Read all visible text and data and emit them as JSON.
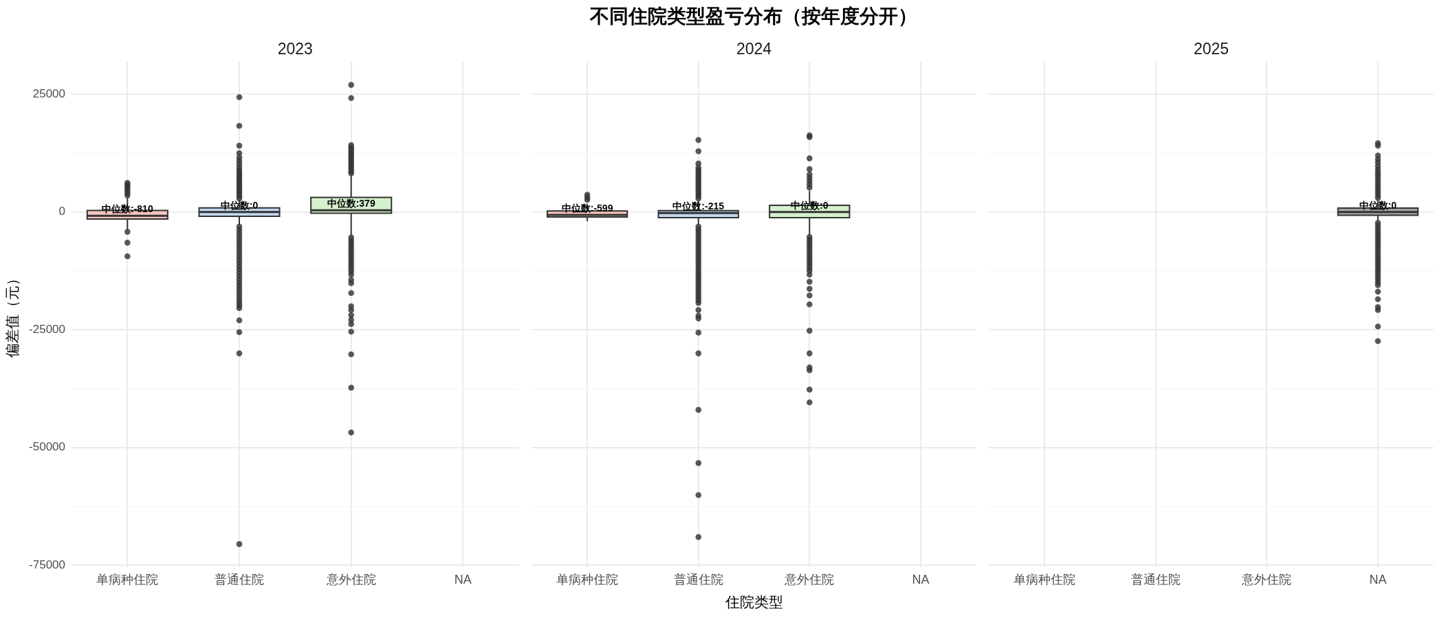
{
  "chart_data": [
    {
      "type": "box",
      "subtitle": "2023",
      "ylabel": "偏差值（元）",
      "categories": [
        "单病种住院",
        "普通住院",
        "意外住院",
        "NA"
      ],
      "boxes": [
        {
          "low": -3700,
          "q1": -1500,
          "median": -810,
          "q3": 350,
          "high": 3000,
          "outliers": [
            3500,
            4000,
            4500,
            5000,
            5400,
            5800,
            6200,
            -4200,
            -6500,
            -9400
          ]
        },
        {
          "low": -2700,
          "q1": -900,
          "median": 0,
          "q3": 900,
          "high": 2600,
          "outliers": [
            2900,
            3400,
            3900,
            4400,
            4900,
            5400,
            5900,
            6400,
            6900,
            7400,
            7900,
            8400,
            8900,
            9500,
            10200,
            10900,
            11600,
            12500,
            14100,
            18300,
            24400,
            -3100,
            -3800,
            -4500,
            -5200,
            -5900,
            -6600,
            -7300,
            -8000,
            -8700,
            -9400,
            -10100,
            -10800,
            -11500,
            -12200,
            -12900,
            -13600,
            -14300,
            -15000,
            -15700,
            -16400,
            -17100,
            -17800,
            -18500,
            -19200,
            -19800,
            -20400,
            -23000,
            -25500,
            -30000,
            -70500
          ]
        },
        {
          "low": -5000,
          "q1": -230,
          "median": 379,
          "q3": 3100,
          "high": 7800,
          "outliers": [
            8200,
            8700,
            9200,
            9700,
            10200,
            10700,
            11200,
            11700,
            12200,
            12700,
            13200,
            13700,
            14200,
            24200,
            27000,
            -5400,
            -6000,
            -6600,
            -7200,
            -7800,
            -8400,
            -9000,
            -9600,
            -10200,
            -10800,
            -11400,
            -12000,
            -12600,
            -13300,
            -14400,
            -15100,
            -17200,
            -20000,
            -20800,
            -21900,
            -22900,
            -23800,
            -25400,
            -30200,
            -37300,
            -46800
          ]
        },
        null
      ],
      "colors": [
        "#f9c4be",
        "#c2d6ec",
        "#d4f0cc",
        null
      ],
      "value_labels": [
        "中位数:-810",
        "中位数:0",
        "中位数:379",
        null
      ],
      "ylim": [
        -75400,
        31900
      ],
      "yticks": [
        -75000,
        {
          "value": -62500,
          "label": null
        },
        -50000,
        {
          "value": -37500,
          "label": null
        },
        -25000,
        {
          "value": -12500,
          "label": null
        },
        0,
        {
          "value": 12500,
          "label": null
        },
        25000
      ],
      "grid": true
    },
    {
      "type": "box",
      "title": "不同住院类型盈亏分布（按年度分开）",
      "subtitle": "2024",
      "xlabel": "住院类型",
      "categories": [
        "单病种住院",
        "普通住院",
        "意外住院",
        "NA"
      ],
      "boxes": [
        {
          "low": -1960,
          "q1": -1050,
          "median": -599,
          "q3": 230,
          "high": 1500,
          "outliers": [
            2600,
            3100,
            3700
          ]
        },
        {
          "low": -2700,
          "q1": -1200,
          "median": -215,
          "q3": 300,
          "high": 2400,
          "outliers": [
            2900,
            3400,
            3900,
            4400,
            4900,
            5400,
            5900,
            6400,
            6900,
            7400,
            7900,
            8400,
            8900,
            9400,
            10300,
            12900,
            15300,
            -3100,
            -3700,
            -4300,
            -4900,
            -5500,
            -6100,
            -6700,
            -7300,
            -7900,
            -8500,
            -9100,
            -9700,
            -10300,
            -10900,
            -11500,
            -12100,
            -12700,
            -13300,
            -13900,
            -14500,
            -15100,
            -15700,
            -16300,
            -16900,
            -17500,
            -18100,
            -18700,
            -19300,
            -20800,
            -22000,
            -22600,
            -25600,
            -30000,
            -42000,
            -53300,
            -60100,
            -69000
          ]
        },
        {
          "low": -4800,
          "q1": -1200,
          "median": 0,
          "q3": 1430,
          "high": 4500,
          "outliers": [
            5200,
            5900,
            6600,
            7300,
            8000,
            9100,
            11400,
            15900,
            16300,
            -5300,
            -5900,
            -6500,
            -7100,
            -7700,
            -8300,
            -8900,
            -9500,
            -10100,
            -10700,
            -11300,
            -11900,
            -12500,
            -13300,
            -14800,
            -16300,
            -17700,
            -19600,
            -25200,
            -30000,
            -33000,
            -33600,
            -37700,
            -40400
          ]
        },
        null
      ],
      "colors": [
        "#f9c4be",
        "#c2d6ec",
        "#d4f0cc",
        null
      ],
      "value_labels": [
        "中位数:-599",
        "中位数:-215",
        "中位数:0",
        null
      ],
      "ylim": [
        -75400,
        31900
      ],
      "yticks": [
        -75000,
        {
          "value": -62500,
          "label": null
        },
        -50000,
        {
          "value": -37500,
          "label": null
        },
        -25000,
        {
          "value": -12500,
          "label": null
        },
        0,
        {
          "value": 12500,
          "label": null
        },
        25000
      ],
      "grid": true,
      "tick_labels": "x"
    },
    {
      "type": "box",
      "subtitle": "2025",
      "categories": [
        "单病种住院",
        "普通住院",
        "意外住院",
        "NA"
      ],
      "boxes": [
        null,
        null,
        null,
        {
          "low": -1800,
          "q1": -680,
          "median": 0,
          "q3": 830,
          "high": 2500,
          "outliers": [
            3000,
            3600,
            4200,
            4800,
            5400,
            6000,
            6600,
            7200,
            7800,
            8400,
            9000,
            9700,
            10500,
            11200,
            12000,
            14100,
            14600,
            -2300,
            -2900,
            -3500,
            -4100,
            -4700,
            -5300,
            -5900,
            -6500,
            -7100,
            -7700,
            -8300,
            -8900,
            -9500,
            -10100,
            -10700,
            -11300,
            -11900,
            -12500,
            -13100,
            -13700,
            -14300,
            -14900,
            -15500,
            -16900,
            -18500,
            -20200,
            -20800,
            -24300,
            -27400
          ]
        }
      ],
      "colors": [
        null,
        null,
        null,
        "#a5a5a5"
      ],
      "value_labels": [
        null,
        null,
        null,
        "中位数:0"
      ],
      "ylim": [
        -75400,
        31900
      ],
      "yticks": [
        -75000,
        {
          "value": -62500,
          "label": null
        },
        -50000,
        {
          "value": -37500,
          "label": null
        },
        -25000,
        {
          "value": -12500,
          "label": null
        },
        0,
        {
          "value": 12500,
          "label": null
        },
        25000
      ],
      "grid": true,
      "tick_labels": "x"
    }
  ]
}
